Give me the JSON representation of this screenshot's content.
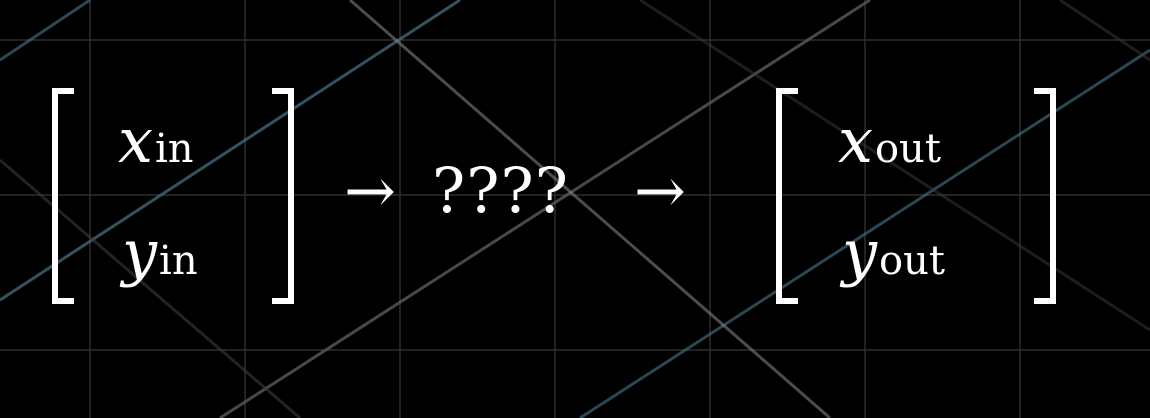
{
  "input_vector": {
    "x_var": "x",
    "x_sub": "in",
    "y_var": "y",
    "y_sub": "in"
  },
  "arrow_1": "→",
  "transformation_label": "????",
  "arrow_2": "→",
  "output_vector": {
    "x_var": "x",
    "x_sub": "out",
    "y_var": "y",
    "y_sub": "out"
  },
  "colors": {
    "background": "#000000",
    "grid_line": "#3a3a3a",
    "grid_major": "#555555",
    "diagonal_light": "#9a9a9a",
    "diagonal_blue": "#4a7488",
    "foreground": "#ffffff"
  }
}
